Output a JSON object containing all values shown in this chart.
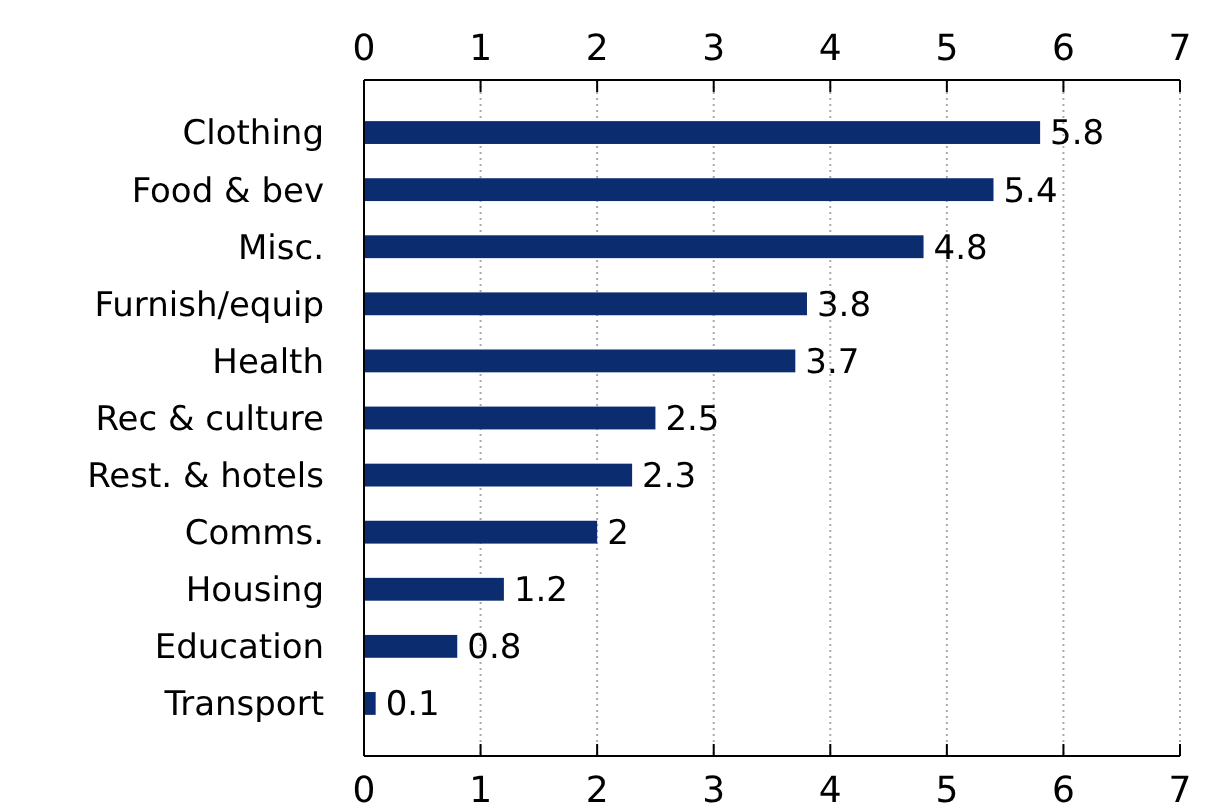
{
  "chart_data": {
    "type": "bar",
    "orientation": "horizontal",
    "categories": [
      "Clothing",
      "Food & bev",
      "Misc.",
      "Furnish/equip",
      "Health",
      "Rec & culture",
      "Rest. & hotels",
      "Comms.",
      "Housing",
      "Education",
      "Transport"
    ],
    "values": [
      5.8,
      5.4,
      4.8,
      3.8,
      3.7,
      2.5,
      2.3,
      2,
      1.2,
      0.8,
      0.1
    ],
    "color": "#0b2c6e",
    "xlim": [
      0,
      7
    ],
    "xticks": [
      0,
      1,
      2,
      3,
      4,
      5,
      6,
      7
    ],
    "x2lim": [
      0,
      7
    ],
    "x2ticks": [
      0,
      1,
      2,
      3,
      4,
      5,
      6,
      7
    ],
    "grid": "x",
    "data_labels": true
  }
}
